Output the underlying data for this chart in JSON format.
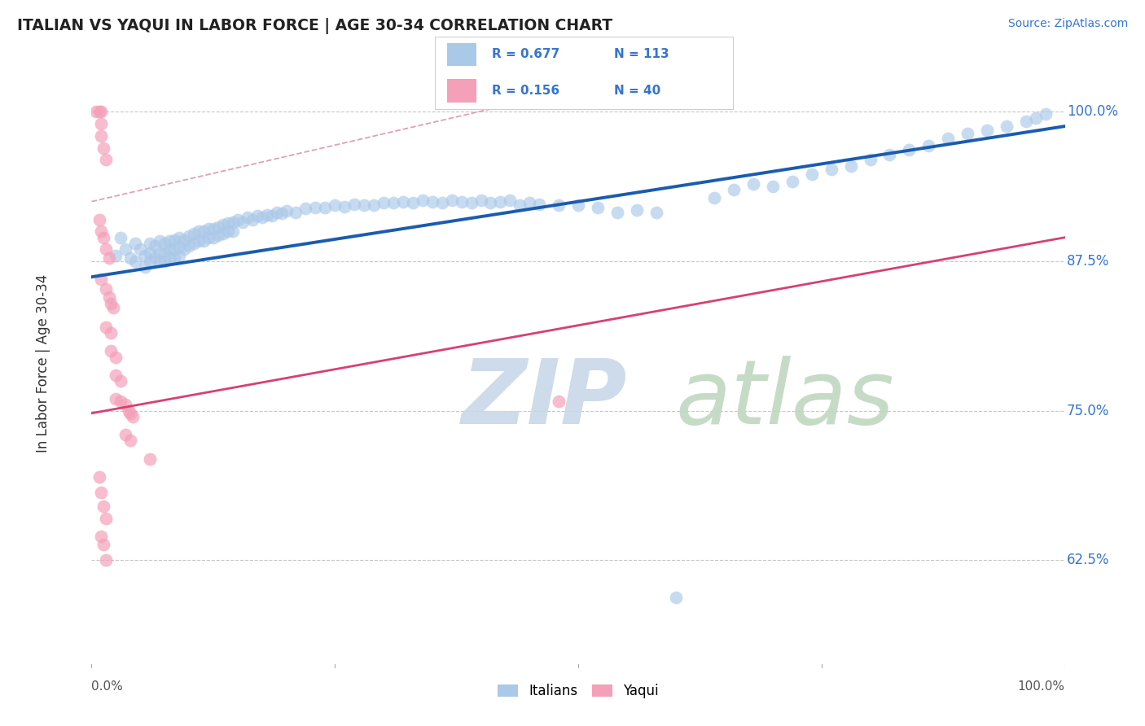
{
  "title": "ITALIAN VS YAQUI IN LABOR FORCE | AGE 30-34 CORRELATION CHART",
  "source": "Source: ZipAtlas.com",
  "ylabel": "In Labor Force | Age 30-34",
  "xmin": 0.0,
  "xmax": 1.0,
  "ymin": 0.535,
  "ymax": 1.045,
  "R_italian": 0.677,
  "N_italian": 113,
  "R_yaqui": 0.156,
  "N_yaqui": 40,
  "italian_color": "#aac8e8",
  "yaqui_color": "#f4a0b8",
  "trend_italian_color": "#1a5cb0",
  "trend_yaqui_color": "#d84070",
  "trend_dash_color": "#e0a0b8",
  "watermark_zip_color": "#c8d8e8",
  "watermark_atlas_color": "#c0d8c0",
  "ytick_positions": [
    0.625,
    0.75,
    0.875,
    1.0
  ],
  "ytick_labels": [
    "62.5%",
    "75.0%",
    "87.5%",
    "100.0%"
  ],
  "trend_italian_x0": 0.0,
  "trend_italian_y0": 0.862,
  "trend_italian_x1": 1.0,
  "trend_italian_y1": 0.988,
  "trend_yaqui_x0": 0.0,
  "trend_yaqui_y0": 0.748,
  "trend_yaqui_x1": 1.0,
  "trend_yaqui_y1": 0.895,
  "trend_dash_x0": 0.0,
  "trend_dash_y0": 0.925,
  "trend_dash_x1": 0.45,
  "trend_dash_y1": 1.01,
  "italian_scatter": [
    [
      0.025,
      0.88
    ],
    [
      0.03,
      0.895
    ],
    [
      0.035,
      0.885
    ],
    [
      0.04,
      0.878
    ],
    [
      0.045,
      0.89
    ],
    [
      0.045,
      0.875
    ],
    [
      0.05,
      0.885
    ],
    [
      0.055,
      0.88
    ],
    [
      0.055,
      0.87
    ],
    [
      0.06,
      0.89
    ],
    [
      0.06,
      0.882
    ],
    [
      0.06,
      0.875
    ],
    [
      0.065,
      0.888
    ],
    [
      0.065,
      0.878
    ],
    [
      0.07,
      0.892
    ],
    [
      0.07,
      0.882
    ],
    [
      0.07,
      0.875
    ],
    [
      0.075,
      0.89
    ],
    [
      0.075,
      0.882
    ],
    [
      0.075,
      0.875
    ],
    [
      0.08,
      0.892
    ],
    [
      0.08,
      0.885
    ],
    [
      0.08,
      0.878
    ],
    [
      0.085,
      0.893
    ],
    [
      0.085,
      0.885
    ],
    [
      0.085,
      0.878
    ],
    [
      0.09,
      0.895
    ],
    [
      0.09,
      0.887
    ],
    [
      0.09,
      0.88
    ],
    [
      0.095,
      0.893
    ],
    [
      0.095,
      0.885
    ],
    [
      0.1,
      0.896
    ],
    [
      0.1,
      0.888
    ],
    [
      0.105,
      0.898
    ],
    [
      0.105,
      0.89
    ],
    [
      0.11,
      0.9
    ],
    [
      0.11,
      0.892
    ],
    [
      0.115,
      0.9
    ],
    [
      0.115,
      0.892
    ],
    [
      0.12,
      0.902
    ],
    [
      0.12,
      0.895
    ],
    [
      0.125,
      0.902
    ],
    [
      0.125,
      0.895
    ],
    [
      0.13,
      0.904
    ],
    [
      0.13,
      0.897
    ],
    [
      0.135,
      0.906
    ],
    [
      0.135,
      0.898
    ],
    [
      0.14,
      0.907
    ],
    [
      0.14,
      0.9
    ],
    [
      0.145,
      0.908
    ],
    [
      0.145,
      0.9
    ],
    [
      0.15,
      0.91
    ],
    [
      0.155,
      0.908
    ],
    [
      0.16,
      0.912
    ],
    [
      0.165,
      0.91
    ],
    [
      0.17,
      0.913
    ],
    [
      0.175,
      0.912
    ],
    [
      0.18,
      0.914
    ],
    [
      0.185,
      0.913
    ],
    [
      0.19,
      0.916
    ],
    [
      0.195,
      0.915
    ],
    [
      0.2,
      0.917
    ],
    [
      0.21,
      0.916
    ],
    [
      0.22,
      0.919
    ],
    [
      0.23,
      0.92
    ],
    [
      0.24,
      0.92
    ],
    [
      0.25,
      0.922
    ],
    [
      0.26,
      0.921
    ],
    [
      0.27,
      0.923
    ],
    [
      0.28,
      0.922
    ],
    [
      0.29,
      0.922
    ],
    [
      0.3,
      0.924
    ],
    [
      0.31,
      0.924
    ],
    [
      0.32,
      0.925
    ],
    [
      0.33,
      0.924
    ],
    [
      0.34,
      0.926
    ],
    [
      0.35,
      0.925
    ],
    [
      0.36,
      0.924
    ],
    [
      0.37,
      0.926
    ],
    [
      0.38,
      0.925
    ],
    [
      0.39,
      0.924
    ],
    [
      0.4,
      0.926
    ],
    [
      0.41,
      0.924
    ],
    [
      0.42,
      0.925
    ],
    [
      0.43,
      0.926
    ],
    [
      0.44,
      0.922
    ],
    [
      0.45,
      0.924
    ],
    [
      0.46,
      0.923
    ],
    [
      0.48,
      0.922
    ],
    [
      0.5,
      0.922
    ],
    [
      0.52,
      0.92
    ],
    [
      0.54,
      0.916
    ],
    [
      0.56,
      0.918
    ],
    [
      0.58,
      0.916
    ],
    [
      0.6,
      0.594
    ],
    [
      0.64,
      0.928
    ],
    [
      0.66,
      0.935
    ],
    [
      0.68,
      0.94
    ],
    [
      0.7,
      0.938
    ],
    [
      0.72,
      0.942
    ],
    [
      0.74,
      0.948
    ],
    [
      0.76,
      0.952
    ],
    [
      0.78,
      0.955
    ],
    [
      0.8,
      0.96
    ],
    [
      0.82,
      0.964
    ],
    [
      0.84,
      0.968
    ],
    [
      0.86,
      0.972
    ],
    [
      0.88,
      0.978
    ],
    [
      0.9,
      0.982
    ],
    [
      0.92,
      0.985
    ],
    [
      0.94,
      0.988
    ],
    [
      0.96,
      0.992
    ],
    [
      0.97,
      0.995
    ],
    [
      0.98,
      0.998
    ]
  ],
  "yaqui_scatter": [
    [
      0.005,
      1.0
    ],
    [
      0.008,
      1.0
    ],
    [
      0.01,
      1.0
    ],
    [
      0.01,
      0.99
    ],
    [
      0.01,
      0.98
    ],
    [
      0.012,
      0.97
    ],
    [
      0.015,
      0.96
    ],
    [
      0.008,
      0.91
    ],
    [
      0.01,
      0.9
    ],
    [
      0.012,
      0.895
    ],
    [
      0.015,
      0.885
    ],
    [
      0.018,
      0.878
    ],
    [
      0.01,
      0.86
    ],
    [
      0.015,
      0.852
    ],
    [
      0.018,
      0.845
    ],
    [
      0.02,
      0.84
    ],
    [
      0.022,
      0.836
    ],
    [
      0.015,
      0.82
    ],
    [
      0.02,
      0.815
    ],
    [
      0.02,
      0.8
    ],
    [
      0.025,
      0.795
    ],
    [
      0.025,
      0.78
    ],
    [
      0.03,
      0.775
    ],
    [
      0.025,
      0.76
    ],
    [
      0.03,
      0.758
    ],
    [
      0.035,
      0.755
    ],
    [
      0.038,
      0.75
    ],
    [
      0.04,
      0.748
    ],
    [
      0.042,
      0.745
    ],
    [
      0.035,
      0.73
    ],
    [
      0.04,
      0.725
    ],
    [
      0.06,
      0.71
    ],
    [
      0.008,
      0.695
    ],
    [
      0.01,
      0.682
    ],
    [
      0.012,
      0.67
    ],
    [
      0.015,
      0.66
    ],
    [
      0.01,
      0.645
    ],
    [
      0.012,
      0.638
    ],
    [
      0.015,
      0.625
    ],
    [
      0.48,
      0.758
    ]
  ]
}
